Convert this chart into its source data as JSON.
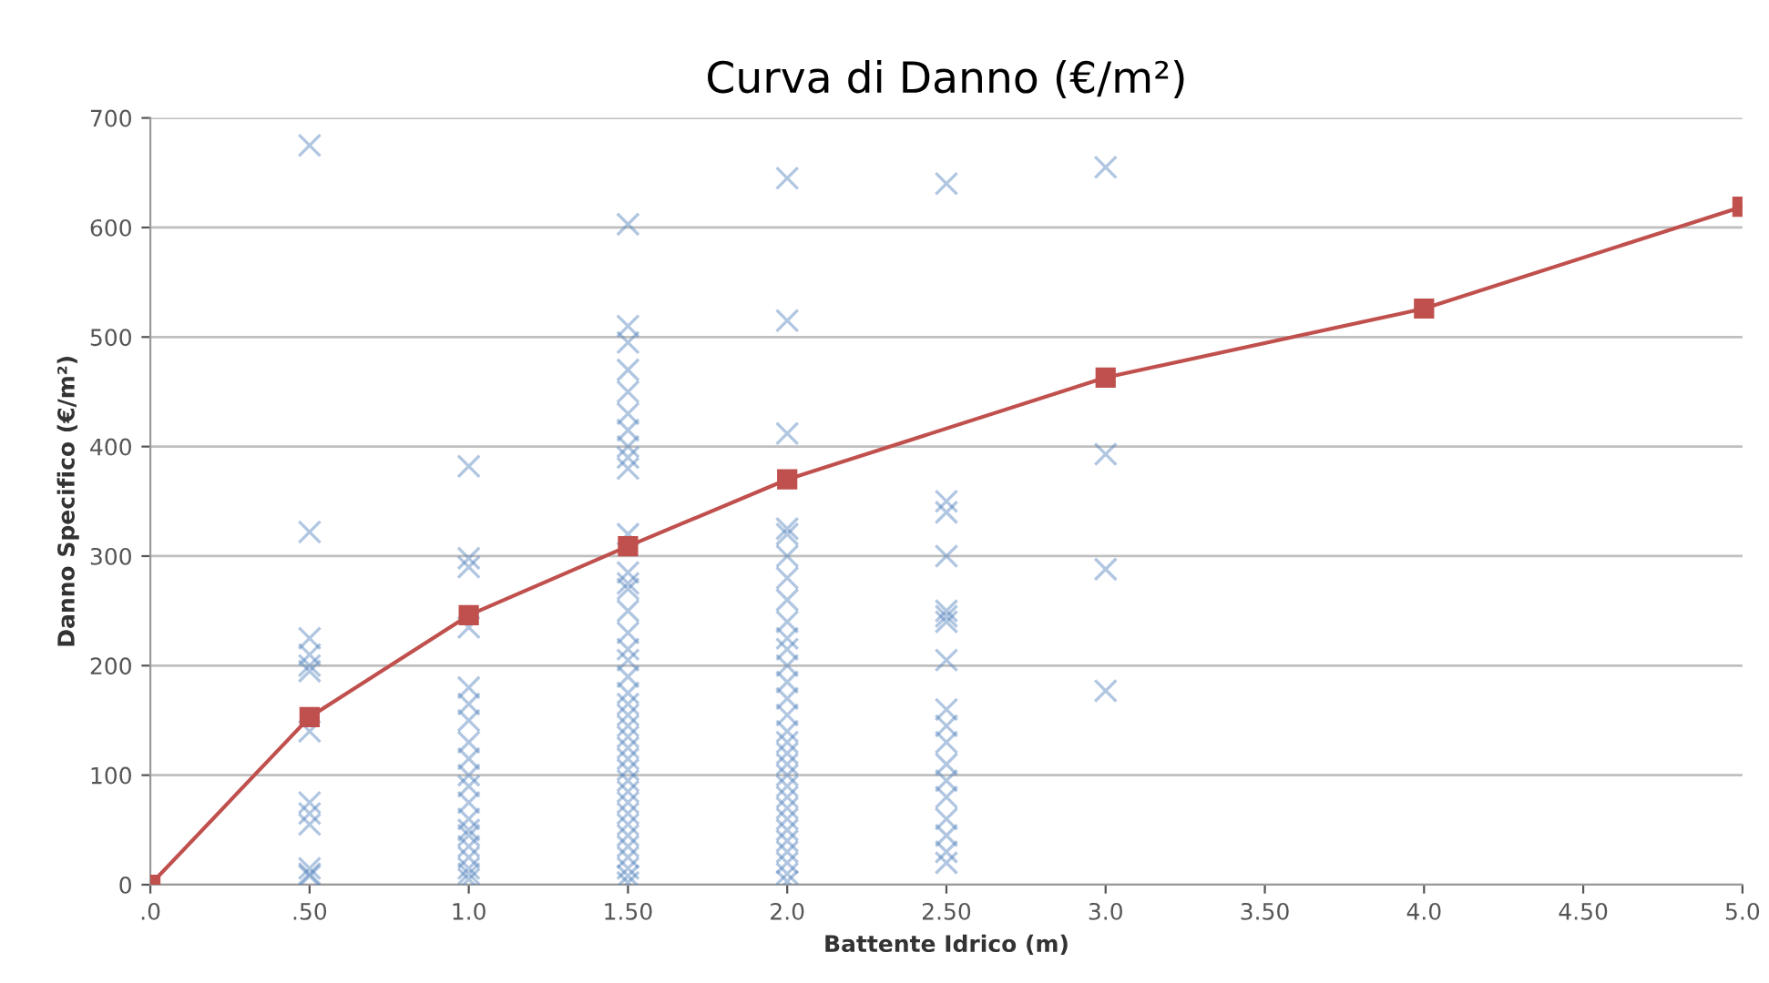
{
  "chart_data": {
    "type": "scatter",
    "title": "Curva di Danno (€/m²)",
    "xlabel": "Battente Idrico (m)",
    "ylabel": "Danno Specifico (€/m²)",
    "xlim": [
      0,
      5
    ],
    "ylim": [
      0,
      700
    ],
    "xticks": [
      {
        "value": 0,
        "label": ".0"
      },
      {
        "value": 0.5,
        "label": ".50"
      },
      {
        "value": 1,
        "label": "1.0"
      },
      {
        "value": 1.5,
        "label": "1.50"
      },
      {
        "value": 2,
        "label": "2.0"
      },
      {
        "value": 2.5,
        "label": "2.50"
      },
      {
        "value": 3,
        "label": "3.0"
      },
      {
        "value": 3.5,
        "label": "3.50"
      },
      {
        "value": 4,
        "label": "4.0"
      },
      {
        "value": 4.5,
        "label": "4.50"
      },
      {
        "value": 5,
        "label": "5.0"
      }
    ],
    "yticks": [
      0,
      100,
      200,
      300,
      400,
      500,
      600,
      700
    ],
    "grid": "y",
    "legend": false,
    "series": [
      {
        "color": "#4f81bd",
        "marker": "cross",
        "x": [
          0.5,
          0.5,
          0.5,
          0.5,
          0.5,
          0.5,
          0.5,
          0.5,
          0.5,
          0.5,
          0.5,
          0.5,
          0.5,
          1,
          1,
          1,
          1,
          1,
          1,
          1,
          1,
          1,
          1,
          1,
          1,
          1,
          1,
          1,
          1,
          1,
          1,
          1,
          1,
          1.5,
          1.5,
          1.5,
          1.5,
          1.5,
          1.5,
          1.5,
          1.5,
          1.5,
          1.5,
          1.5,
          1.5,
          1.5,
          1.5,
          1.5,
          1.5,
          1.5,
          1.5,
          1.5,
          1.5,
          1.5,
          1.5,
          1.5,
          1.5,
          1.5,
          1.5,
          1.5,
          1.5,
          1.5,
          1.5,
          1.5,
          1.5,
          1.5,
          1.5,
          1.5,
          1.5,
          1.5,
          1.5,
          2,
          2,
          2,
          2,
          2,
          2,
          2,
          2,
          2,
          2,
          2,
          2,
          2,
          2,
          2,
          2,
          2,
          2,
          2,
          2,
          2,
          2,
          2,
          2,
          2,
          2,
          2,
          2,
          2,
          2,
          2.5,
          2.5,
          2.5,
          2.5,
          2.5,
          2.5,
          2.5,
          2.5,
          2.5,
          2.5,
          2.5,
          2.5,
          2.5,
          2.5,
          2.5,
          2.5,
          2.5,
          2.5,
          3,
          3,
          3,
          3
        ],
        "values": [
          675,
          322,
          225,
          210,
          200,
          195,
          140,
          75,
          65,
          55,
          15,
          10,
          8,
          382,
          298,
          290,
          235,
          180,
          165,
          150,
          130,
          115,
          100,
          90,
          75,
          60,
          50,
          45,
          35,
          25,
          15,
          10,
          5,
          603,
          510,
          495,
          470,
          450,
          430,
          415,
          400,
          390,
          380,
          320,
          285,
          275,
          270,
          250,
          230,
          215,
          205,
          190,
          175,
          165,
          155,
          145,
          135,
          125,
          115,
          105,
          95,
          85,
          75,
          65,
          55,
          45,
          35,
          25,
          15,
          8,
          2,
          645,
          515,
          412,
          325,
          320,
          300,
          280,
          260,
          240,
          225,
          215,
          200,
          185,
          170,
          155,
          140,
          130,
          120,
          110,
          100,
          90,
          80,
          70,
          60,
          50,
          40,
          30,
          20,
          10,
          3,
          640,
          350,
          340,
          300,
          250,
          245,
          240,
          205,
          160,
          145,
          130,
          110,
          95,
          80,
          60,
          45,
          30,
          20,
          655,
          393,
          288,
          177
        ]
      },
      {
        "type": "line",
        "color": "#c0504d",
        "marker": "square",
        "line_style": "solid",
        "x": [
          0,
          0.5,
          1,
          1.5,
          2,
          3,
          4,
          5
        ],
        "values": [
          0,
          153,
          246,
          309,
          370,
          463,
          526,
          619
        ]
      }
    ]
  }
}
